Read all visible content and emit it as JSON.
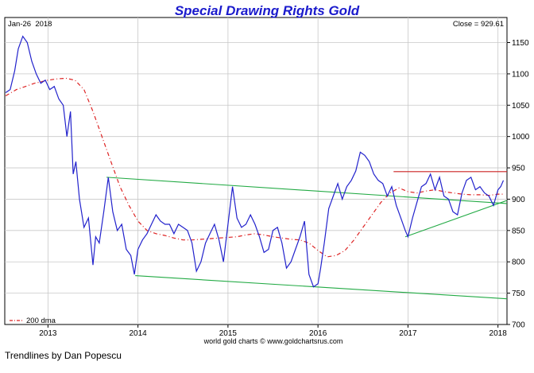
{
  "chart_data": {
    "type": "line",
    "title": "Special Drawing Rights Gold",
    "date_label": "Jan-26  2018",
    "close_label": "Close = 929.61",
    "source_label": "world gold charts © www.goldchartsrus.com",
    "credit_label": "Trendlines by Dan Popescu",
    "legend_label": "200 dma",
    "legend_position": "bottom-left",
    "grid": true,
    "xlim": [
      2012.52,
      2018.1
    ],
    "ylim": [
      700,
      1190
    ],
    "x_ticks": [
      2013,
      2014,
      2015,
      2016,
      2017,
      2018
    ],
    "x_tick_labels": [
      "2013",
      "2014",
      "2015",
      "2016",
      "2017",
      "2018"
    ],
    "y_ticks": [
      700,
      750,
      800,
      850,
      900,
      950,
      1000,
      1050,
      1100,
      1150
    ],
    "y_tick_labels": [
      "700",
      "750",
      "800",
      "850",
      "900",
      "950",
      "1000",
      "1050",
      "1100",
      "1150"
    ],
    "colors": {
      "price": "#2222cc",
      "dma": "#dd2222",
      "trend_support": "#22aa44",
      "resistance": "#cc2222",
      "title": "#1a1acc",
      "grid": "#c8c8c8"
    },
    "series": [
      {
        "name": "",
        "x": [
          2012.53,
          2012.58,
          2012.63,
          2012.67,
          2012.72,
          2012.77,
          2012.82,
          2012.87,
          2012.92,
          2012.97,
          2013.02,
          2013.07,
          2013.12,
          2013.17,
          2013.21,
          2013.25,
          2013.28,
          2013.31,
          2013.35,
          2013.4,
          2013.45,
          2013.5,
          2013.53,
          2013.57,
          2013.62,
          2013.67,
          2013.72,
          2013.77,
          2013.82,
          2013.87,
          2013.92,
          2013.96,
          2014.0,
          2014.05,
          2014.1,
          2014.15,
          2014.2,
          2014.25,
          2014.3,
          2014.35,
          2014.4,
          2014.45,
          2014.5,
          2014.55,
          2014.6,
          2014.65,
          2014.7,
          2014.75,
          2014.8,
          2014.85,
          2014.9,
          2014.95,
          2015.0,
          2015.05,
          2015.1,
          2015.15,
          2015.2,
          2015.25,
          2015.3,
          2015.35,
          2015.4,
          2015.45,
          2015.5,
          2015.55,
          2015.6,
          2015.65,
          2015.7,
          2015.75,
          2015.8,
          2015.85,
          2015.9,
          2015.95,
          2016.0,
          2016.03,
          2016.07,
          2016.12,
          2016.17,
          2016.22,
          2016.27,
          2016.32,
          2016.37,
          2016.42,
          2016.47,
          2016.52,
          2016.57,
          2016.62,
          2016.67,
          2016.72,
          2016.77,
          2016.82,
          2016.87,
          2016.92,
          2016.97,
          2017.0,
          2017.05,
          2017.1,
          2017.15,
          2017.2,
          2017.25,
          2017.3,
          2017.35,
          2017.4,
          2017.45,
          2017.5,
          2017.55,
          2017.6,
          2017.65,
          2017.7,
          2017.75,
          2017.8,
          2017.85,
          2017.9,
          2017.95,
          2018.0,
          2018.03,
          2018.06
        ],
        "values": [
          1070,
          1075,
          1105,
          1140,
          1160,
          1150,
          1120,
          1100,
          1085,
          1090,
          1075,
          1080,
          1060,
          1050,
          1000,
          1040,
          940,
          960,
          900,
          855,
          870,
          795,
          840,
          830,
          880,
          935,
          880,
          850,
          860,
          820,
          810,
          780,
          820,
          835,
          845,
          860,
          875,
          865,
          860,
          860,
          845,
          860,
          855,
          850,
          830,
          785,
          800,
          830,
          845,
          860,
          835,
          800,
          860,
          920,
          870,
          855,
          860,
          875,
          860,
          840,
          815,
          820,
          850,
          855,
          830,
          790,
          800,
          820,
          840,
          865,
          780,
          760,
          765,
          790,
          830,
          885,
          905,
          925,
          900,
          920,
          930,
          945,
          975,
          970,
          960,
          940,
          930,
          925,
          905,
          920,
          890,
          870,
          850,
          840,
          870,
          895,
          920,
          925,
          940,
          915,
          935,
          905,
          900,
          880,
          875,
          910,
          930,
          935,
          915,
          920,
          910,
          905,
          890,
          915,
          920,
          930
        ]
      },
      {
        "name": "200 dma",
        "x": [
          2012.53,
          2012.65,
          2012.75,
          2012.85,
          2013.0,
          2013.1,
          2013.2,
          2013.3,
          2013.4,
          2013.5,
          2013.6,
          2013.7,
          2013.8,
          2013.9,
          2014.0,
          2014.1,
          2014.2,
          2014.3,
          2014.4,
          2014.5,
          2014.6,
          2014.7,
          2014.8,
          2014.9,
          2015.0,
          2015.1,
          2015.2,
          2015.3,
          2015.4,
          2015.5,
          2015.6,
          2015.7,
          2015.8,
          2015.9,
          2016.0,
          2016.1,
          2016.2,
          2016.3,
          2016.4,
          2016.5,
          2016.6,
          2016.7,
          2016.8,
          2016.9,
          2017.0,
          2017.1,
          2017.2,
          2017.3,
          2017.4,
          2017.5,
          2017.6,
          2017.7,
          2017.8,
          2017.9,
          2018.0,
          2018.06
        ],
        "values": [
          1065,
          1075,
          1080,
          1085,
          1090,
          1092,
          1093,
          1090,
          1075,
          1040,
          1000,
          960,
          920,
          890,
          865,
          850,
          845,
          842,
          838,
          835,
          835,
          836,
          837,
          838,
          839,
          840,
          843,
          845,
          843,
          840,
          838,
          836,
          835,
          830,
          818,
          808,
          810,
          818,
          835,
          855,
          875,
          895,
          910,
          918,
          912,
          910,
          913,
          915,
          912,
          910,
          908,
          907,
          907,
          906,
          908,
          908
        ]
      }
    ],
    "trendlines": [
      {
        "kind": "support",
        "x": [
          2013.65,
          2018.1
        ],
        "y": [
          935,
          893
        ]
      },
      {
        "kind": "support",
        "x": [
          2013.97,
          2018.1
        ],
        "y": [
          778,
          741
        ]
      },
      {
        "kind": "support",
        "x": [
          2016.97,
          2018.1
        ],
        "y": [
          840,
          898
        ]
      },
      {
        "kind": "resistance",
        "x": [
          2016.84,
          2018.1
        ],
        "y": [
          944,
          944
        ]
      }
    ]
  }
}
